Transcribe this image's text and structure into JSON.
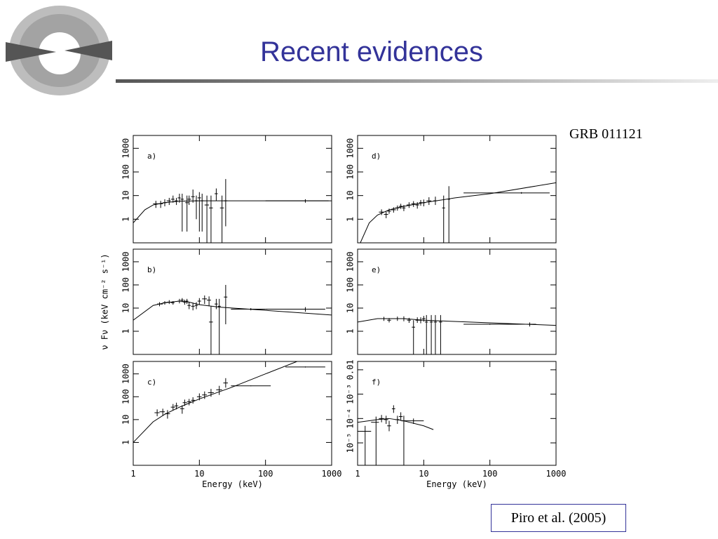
{
  "slide": {
    "title": "Recent evidences",
    "label": "GRB 011121",
    "citation": "Piro et al. (2005)"
  },
  "chart_data": [
    {
      "type": "scatter",
      "panel": "a)",
      "log_x": true,
      "log_y": true,
      "xlim": [
        1,
        1000
      ],
      "ylim": [
        0.1,
        3500
      ],
      "xticks": [
        1,
        10,
        100,
        1000
      ],
      "yticks": [
        1,
        10,
        100,
        1000
      ],
      "color": "#000000",
      "x": [
        2.2,
        2.6,
        3,
        3.5,
        4,
        4.5,
        5,
        5.5,
        6.5,
        7,
        8,
        9,
        10,
        11,
        13,
        15,
        18,
        22,
        25,
        400
      ],
      "values": [
        4.5,
        4.5,
        5,
        6,
        7,
        6,
        8,
        7,
        5,
        7,
        9,
        6,
        8,
        6,
        4,
        3,
        12,
        3,
        6,
        6
      ],
      "xlo": [
        2,
        2.4,
        2.8,
        3.2,
        3.7,
        4.2,
        4.7,
        5.2,
        6.1,
        6.6,
        7.5,
        8.5,
        9.4,
        10.4,
        12,
        14,
        17,
        20.5,
        23.5,
        100
      ],
      "xhi": [
        2.4,
        2.8,
        3.2,
        3.7,
        4.2,
        4.7,
        5.2,
        5.8,
        6.9,
        7.5,
        8.5,
        9.5,
        10.6,
        11.6,
        14,
        16,
        19,
        23.5,
        26.5,
        900
      ],
      "ylo": [
        3,
        3,
        3.5,
        4,
        5,
        4,
        5,
        0.3,
        0.3,
        4,
        5,
        1,
        0.3,
        0.3,
        0.1,
        0.1,
        6,
        0.1,
        0.5,
        5
      ],
      "yhi": [
        6,
        6,
        7,
        8,
        10,
        8,
        12,
        12,
        10,
        10,
        18,
        10,
        14,
        12,
        10,
        10,
        20,
        10,
        50,
        7
      ],
      "model": {
        "x": [
          1,
          1.5,
          2,
          3,
          5,
          10,
          1000
        ],
        "values": [
          0.7,
          2.5,
          4,
          5,
          5.8,
          6,
          6
        ]
      }
    },
    {
      "type": "scatter",
      "panel": "b)",
      "log_x": true,
      "log_y": true,
      "xlim": [
        1,
        1000
      ],
      "ylim": [
        0.1,
        3500
      ],
      "xticks": [
        1,
        10,
        100,
        1000
      ],
      "yticks": [
        1,
        10,
        100,
        1000
      ],
      "color": "#000000",
      "ylabel": "ν Fν (keV cm⁻² s⁻¹)",
      "x": [
        2.5,
        3,
        3.5,
        4,
        5,
        5.5,
        6,
        6.5,
        7,
        8,
        9,
        10,
        12,
        14,
        15,
        18,
        20,
        25,
        60,
        400
      ],
      "values": [
        15,
        17,
        18,
        17,
        20,
        22,
        18,
        20,
        13,
        12,
        13,
        20,
        25,
        22,
        2.5,
        15,
        12,
        30,
        9,
        9
      ],
      "xlo": [
        2.3,
        2.8,
        3.2,
        3.7,
        4.7,
        5.2,
        5.7,
        6.2,
        6.6,
        7.5,
        8.5,
        9.4,
        11,
        13,
        14,
        17,
        19,
        23.5,
        30,
        100
      ],
      "xhi": [
        2.8,
        3.2,
        3.7,
        4.2,
        5.2,
        5.8,
        6.3,
        6.8,
        7.4,
        8.5,
        9.5,
        10.6,
        13,
        15,
        16,
        19,
        21,
        26.5,
        100,
        800
      ],
      "ylo": [
        12,
        14,
        15,
        14,
        16,
        18,
        14,
        15,
        9,
        8,
        9,
        14,
        15,
        12,
        0.1,
        9,
        0.1,
        2,
        8,
        7
      ],
      "yhi": [
        18,
        20,
        22,
        20,
        25,
        27,
        23,
        25,
        18,
        17,
        18,
        27,
        35,
        32,
        12,
        25,
        25,
        100,
        10,
        11
      ],
      "model": {
        "x": [
          1,
          2,
          3,
          5,
          7,
          10,
          20,
          100,
          1000
        ],
        "values": [
          3,
          13,
          17,
          20,
          18,
          14,
          11,
          8,
          5
        ]
      }
    },
    {
      "type": "scatter",
      "panel": "c)",
      "log_x": true,
      "log_y": true,
      "xlim": [
        1,
        1000
      ],
      "ylim": [
        0.1,
        3500
      ],
      "xticks": [
        1,
        10,
        100,
        1000
      ],
      "yticks": [
        1,
        10,
        100,
        1000
      ],
      "color": "#000000",
      "xlabel": "Energy (keV)",
      "x": [
        2.3,
        2.8,
        3.3,
        4,
        4.5,
        5.5,
        6,
        7,
        8,
        10,
        12,
        15,
        20,
        25,
        60,
        400
      ],
      "values": [
        20,
        22,
        18,
        35,
        40,
        30,
        55,
        60,
        70,
        100,
        120,
        150,
        200,
        400,
        300,
        2000
      ],
      "xlo": [
        2.1,
        2.5,
        3,
        3.7,
        4.2,
        5.1,
        5.6,
        6.5,
        7.5,
        9.2,
        11,
        13.5,
        18,
        23,
        30,
        200
      ],
      "xhi": [
        2.5,
        3,
        3.6,
        4.3,
        4.8,
        5.9,
        6.5,
        7.5,
        8.6,
        10.8,
        13,
        16.5,
        22,
        27,
        120,
        800
      ],
      "ylo": [
        14,
        15,
        11,
        25,
        28,
        18,
        40,
        42,
        50,
        70,
        80,
        100,
        120,
        250,
        290,
        1900
      ],
      "yhi": [
        28,
        30,
        26,
        48,
        55,
        42,
        75,
        80,
        95,
        140,
        170,
        220,
        300,
        650,
        310,
        2100
      ],
      "model": {
        "x": [
          1,
          2,
          3,
          5,
          10,
          30,
          100,
          300
        ],
        "values": [
          1,
          8,
          17,
          35,
          80,
          250,
          1000,
          3500
        ]
      }
    },
    {
      "type": "scatter",
      "panel": "d)",
      "log_x": true,
      "log_y": true,
      "xlim": [
        1,
        1000
      ],
      "ylim": [
        0.1,
        3500
      ],
      "xticks": [
        1,
        10,
        100,
        1000
      ],
      "yticks": [
        1,
        10,
        100,
        1000
      ],
      "color": "#000000",
      "x": [
        2.3,
        2.7,
        3,
        3.5,
        4,
        4.5,
        5,
        6,
        7,
        8,
        9,
        10,
        12,
        15,
        20,
        24,
        300
      ],
      "values": [
        2,
        1.6,
        2.2,
        2.5,
        3,
        3.5,
        3,
        4,
        4.5,
        4,
        5,
        5,
        6,
        6,
        3,
        7,
        13
      ],
      "xlo": [
        2.1,
        2.5,
        2.8,
        3.2,
        3.7,
        4.2,
        4.7,
        5.5,
        6.5,
        7.5,
        8.5,
        9.4,
        11,
        14,
        19,
        23,
        40
      ],
      "xhi": [
        2.5,
        2.9,
        3.2,
        3.8,
        4.3,
        4.8,
        5.3,
        6.5,
        7.5,
        8.5,
        9.5,
        10.6,
        13,
        16,
        21,
        25,
        800
      ],
      "ylo": [
        1.5,
        1.1,
        1.7,
        1.9,
        2.3,
        2.7,
        2.2,
        3,
        3.3,
        2.8,
        3.7,
        3.5,
        4,
        4,
        0.1,
        0.1,
        12
      ],
      "yhi": [
        2.6,
        2.1,
        2.8,
        3.2,
        3.8,
        4.5,
        4,
        5.2,
        5.8,
        5.3,
        6.5,
        6.8,
        8.5,
        9,
        10,
        25,
        14
      ],
      "model": {
        "x": [
          1.1,
          1.5,
          2,
          3,
          5,
          10,
          30,
          100,
          1000
        ],
        "values": [
          0.1,
          0.7,
          1.5,
          2.5,
          3.5,
          5,
          8,
          12,
          35
        ]
      }
    },
    {
      "type": "scatter",
      "panel": "e)",
      "log_x": true,
      "log_y": true,
      "xlim": [
        1,
        1000
      ],
      "ylim": [
        0.1,
        3500
      ],
      "xticks": [
        1,
        10,
        100,
        1000
      ],
      "yticks": [
        1,
        10,
        100,
        1000
      ],
      "color": "#000000",
      "x": [
        2.5,
        3,
        4,
        5,
        6,
        7,
        8,
        9,
        10,
        11,
        13,
        15,
        18,
        100,
        400
      ],
      "values": [
        3.5,
        3,
        3.5,
        3.5,
        3,
        1.5,
        3,
        3,
        3.5,
        2.5,
        2.5,
        2.5,
        2.5,
        2,
        2
      ],
      "xlo": [
        2.3,
        2.8,
        3.7,
        4.7,
        5.6,
        6.6,
        7.5,
        8.5,
        9.4,
        10.4,
        12.3,
        14.2,
        17,
        40,
        300
      ],
      "xhi": [
        2.7,
        3.2,
        4.3,
        5.3,
        6.4,
        7.4,
        8.5,
        9.5,
        10.6,
        11.6,
        13.7,
        15.8,
        19,
        400,
        500
      ],
      "ylo": [
        2.8,
        2.4,
        2.8,
        2.7,
        2.3,
        0.1,
        2.3,
        2.2,
        2.6,
        0.1,
        0.1,
        0.1,
        0.1,
        1.9,
        1.6
      ],
      "yhi": [
        4.2,
        3.7,
        4.3,
        4.4,
        3.8,
        3,
        4,
        4,
        4.6,
        5,
        5,
        5,
        5,
        2.1,
        2.4
      ],
      "model": {
        "x": [
          1,
          2,
          5,
          10,
          100,
          1000
        ],
        "values": [
          2.5,
          3.5,
          3.5,
          3,
          2.3,
          1.8
        ]
      }
    },
    {
      "type": "scatter",
      "panel": "f)",
      "log_x": true,
      "log_y": true,
      "xlim": [
        1,
        1000
      ],
      "ylim": [
        1.2e-06,
        0.022
      ],
      "xticks": [
        1,
        10,
        100,
        1000
      ],
      "yticks": [
        {
          "value": 1e-05,
          "label": "10⁻⁵"
        },
        {
          "value": 0.0001,
          "label": "10⁻⁴"
        },
        {
          "value": 0.001,
          "label": "10⁻³"
        },
        0.01
      ],
      "color": "#000000",
      "xlabel": "Energy (keV)",
      "x": [
        1.3,
        1.9,
        2.3,
        2.7,
        3,
        3.5,
        4,
        4.5,
        5,
        7
      ],
      "values": [
        3e-05,
        7e-05,
        0.0001,
        9e-05,
        5e-05,
        0.00025,
        9e-05,
        0.00012,
        8e-05,
        8e-05
      ],
      "xlo": [
        1,
        1.6,
        2.1,
        2.5,
        2.8,
        3.3,
        3.7,
        4.2,
        4.6,
        5
      ],
      "xhi": [
        1.6,
        2.1,
        2.5,
        2.9,
        3.2,
        3.7,
        4.3,
        4.8,
        5.4,
        10
      ],
      "ylo": [
        1.2e-06,
        1.2e-06,
        7e-05,
        6e-05,
        3e-05,
        0.00017,
        6e-05,
        8e-05,
        1.2e-06,
        6e-05
      ],
      "yhi": [
        5e-05,
        0.00012,
        0.00014,
        0.00013,
        8e-05,
        0.00035,
        0.00013,
        0.00018,
        0.00013,
        0.0001
      ],
      "model": {
        "x": [
          1,
          2,
          3,
          5,
          10,
          14
        ],
        "values": [
          7e-05,
          9e-05,
          0.0001,
          8e-05,
          5e-05,
          3.5e-05
        ]
      }
    }
  ]
}
